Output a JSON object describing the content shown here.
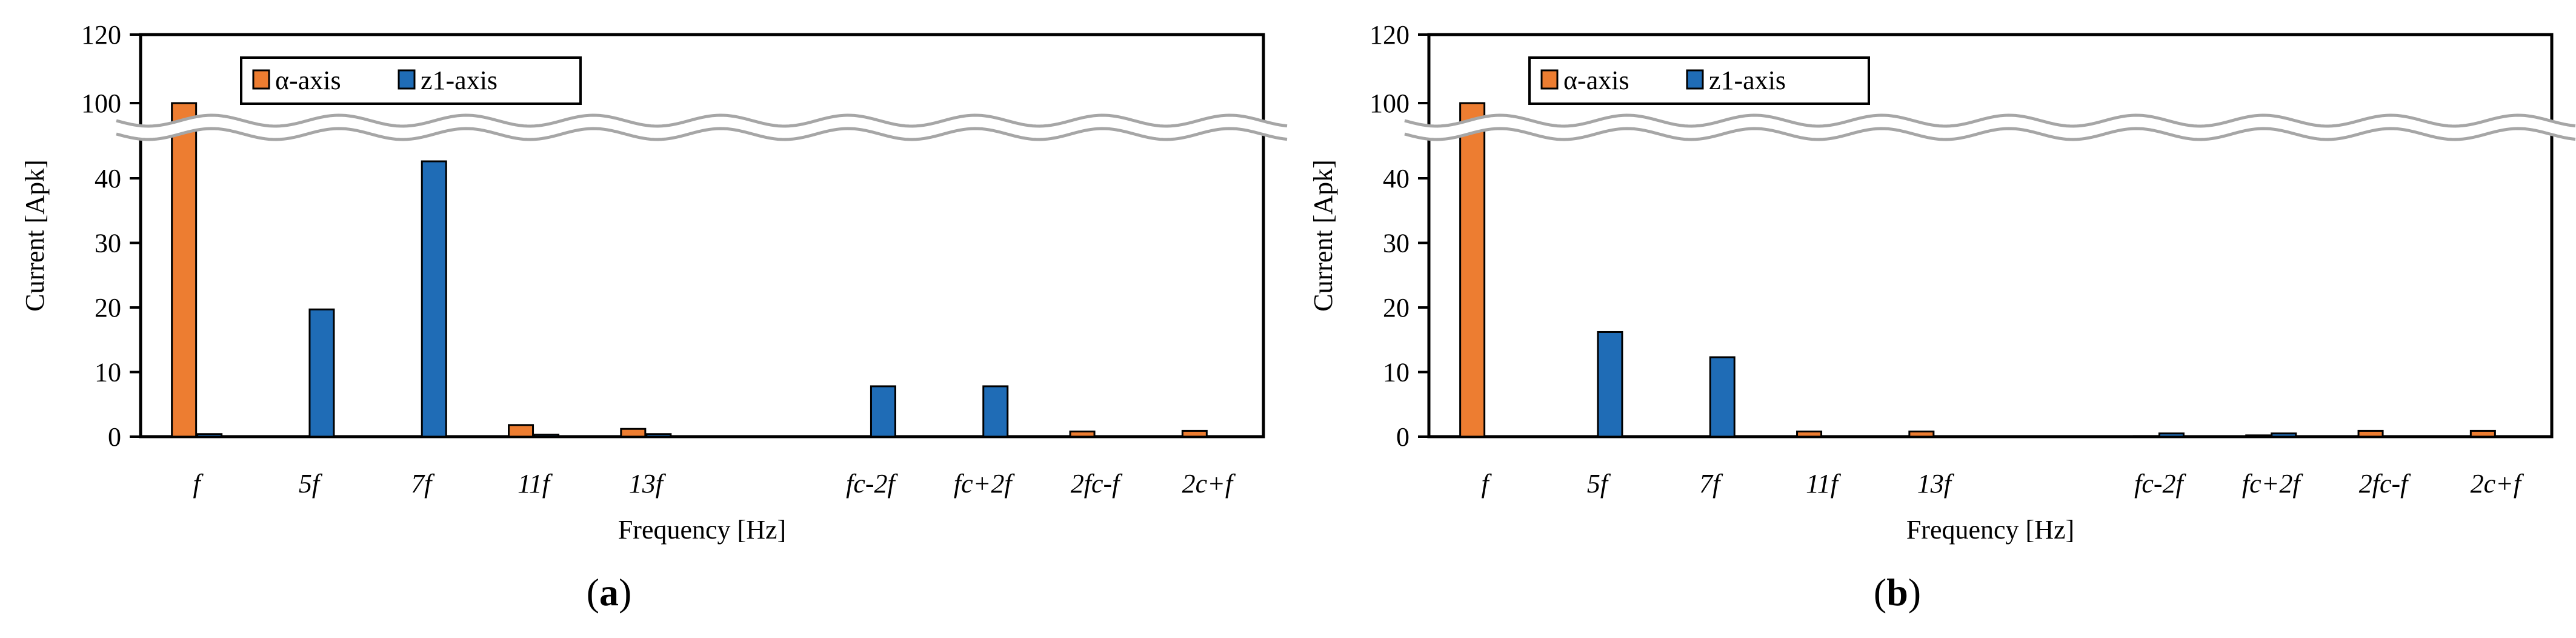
{
  "colors": {
    "alpha": "#ED7D31",
    "z1": "#1F6CB6",
    "axis": "#000000",
    "break": "#A6A6A6"
  },
  "chart_data": [
    {
      "type": "bar",
      "caption": "a",
      "xlabel": "Frequency [Hz]",
      "ylabel": "Current [Apk]",
      "categories": [
        "f",
        "5f",
        "7f",
        "11f",
        "13f",
        "",
        "fc-2f",
        "fc+2f",
        "2fc-f",
        "2c+f"
      ],
      "yticks": [
        "0",
        "10",
        "20",
        "30",
        "40",
        "100",
        "120"
      ],
      "ylim": [
        0,
        120
      ],
      "axis_break": [
        45,
        95
      ],
      "legend_position": "top-left",
      "series": [
        {
          "name": "α-axis",
          "color": "#ED7D31",
          "values": [
            100,
            0,
            0,
            1.8,
            1.2,
            0,
            0,
            0,
            0.8,
            0.9
          ]
        },
        {
          "name": "z1-axis",
          "color": "#1F6CB6",
          "values": [
            0.4,
            19.7,
            43.5,
            0.3,
            0.4,
            0,
            7.8,
            7.8,
            0,
            0
          ]
        }
      ]
    },
    {
      "type": "bar",
      "caption": "b",
      "xlabel": "Frequency [Hz]",
      "ylabel": "Current [Apk]",
      "categories": [
        "f",
        "5f",
        "7f",
        "11f",
        "13f",
        "",
        "fc-2f",
        "fc+2f",
        "2fc-f",
        "2c+f"
      ],
      "yticks": [
        "0",
        "10",
        "20",
        "30",
        "40",
        "100",
        "120"
      ],
      "ylim": [
        0,
        120
      ],
      "axis_break": [
        45,
        95
      ],
      "legend_position": "top-left",
      "series": [
        {
          "name": "α-axis",
          "color": "#ED7D31",
          "values": [
            100,
            0,
            0,
            0.8,
            0.8,
            0,
            0.1,
            0.2,
            0.9,
            0.9
          ]
        },
        {
          "name": "z1-axis",
          "color": "#1F6CB6",
          "values": [
            0,
            16.2,
            12.3,
            0,
            0,
            0,
            0.5,
            0.5,
            0,
            0
          ]
        }
      ]
    }
  ]
}
